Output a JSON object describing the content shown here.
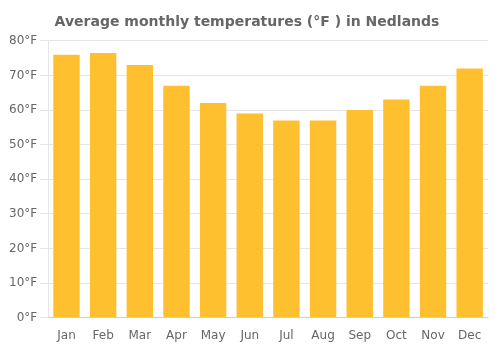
{
  "chart_data": {
    "type": "bar",
    "title": "Average monthly temperatures (°F ) in Nedlands",
    "categories": [
      "Jan",
      "Feb",
      "Mar",
      "Apr",
      "May",
      "Jun",
      "Jul",
      "Aug",
      "Sep",
      "Oct",
      "Nov",
      "Dec"
    ],
    "values": [
      76,
      76.5,
      73,
      67,
      62,
      59,
      57,
      57,
      60,
      63,
      67,
      72
    ],
    "color": "#FFC030",
    "ylim": [
      0,
      80
    ],
    "yticks": [
      {
        "value": 0,
        "label": "0°F"
      },
      {
        "value": 10,
        "label": "10°F"
      },
      {
        "value": 20,
        "label": "20°F"
      },
      {
        "value": 30,
        "label": "30°F"
      },
      {
        "value": 40,
        "label": "40°F"
      },
      {
        "value": 50,
        "label": "50°F"
      },
      {
        "value": 60,
        "label": "60°F"
      },
      {
        "value": 70,
        "label": "70°F"
      },
      {
        "value": 80,
        "label": "80°F"
      }
    ],
    "grid": true
  }
}
